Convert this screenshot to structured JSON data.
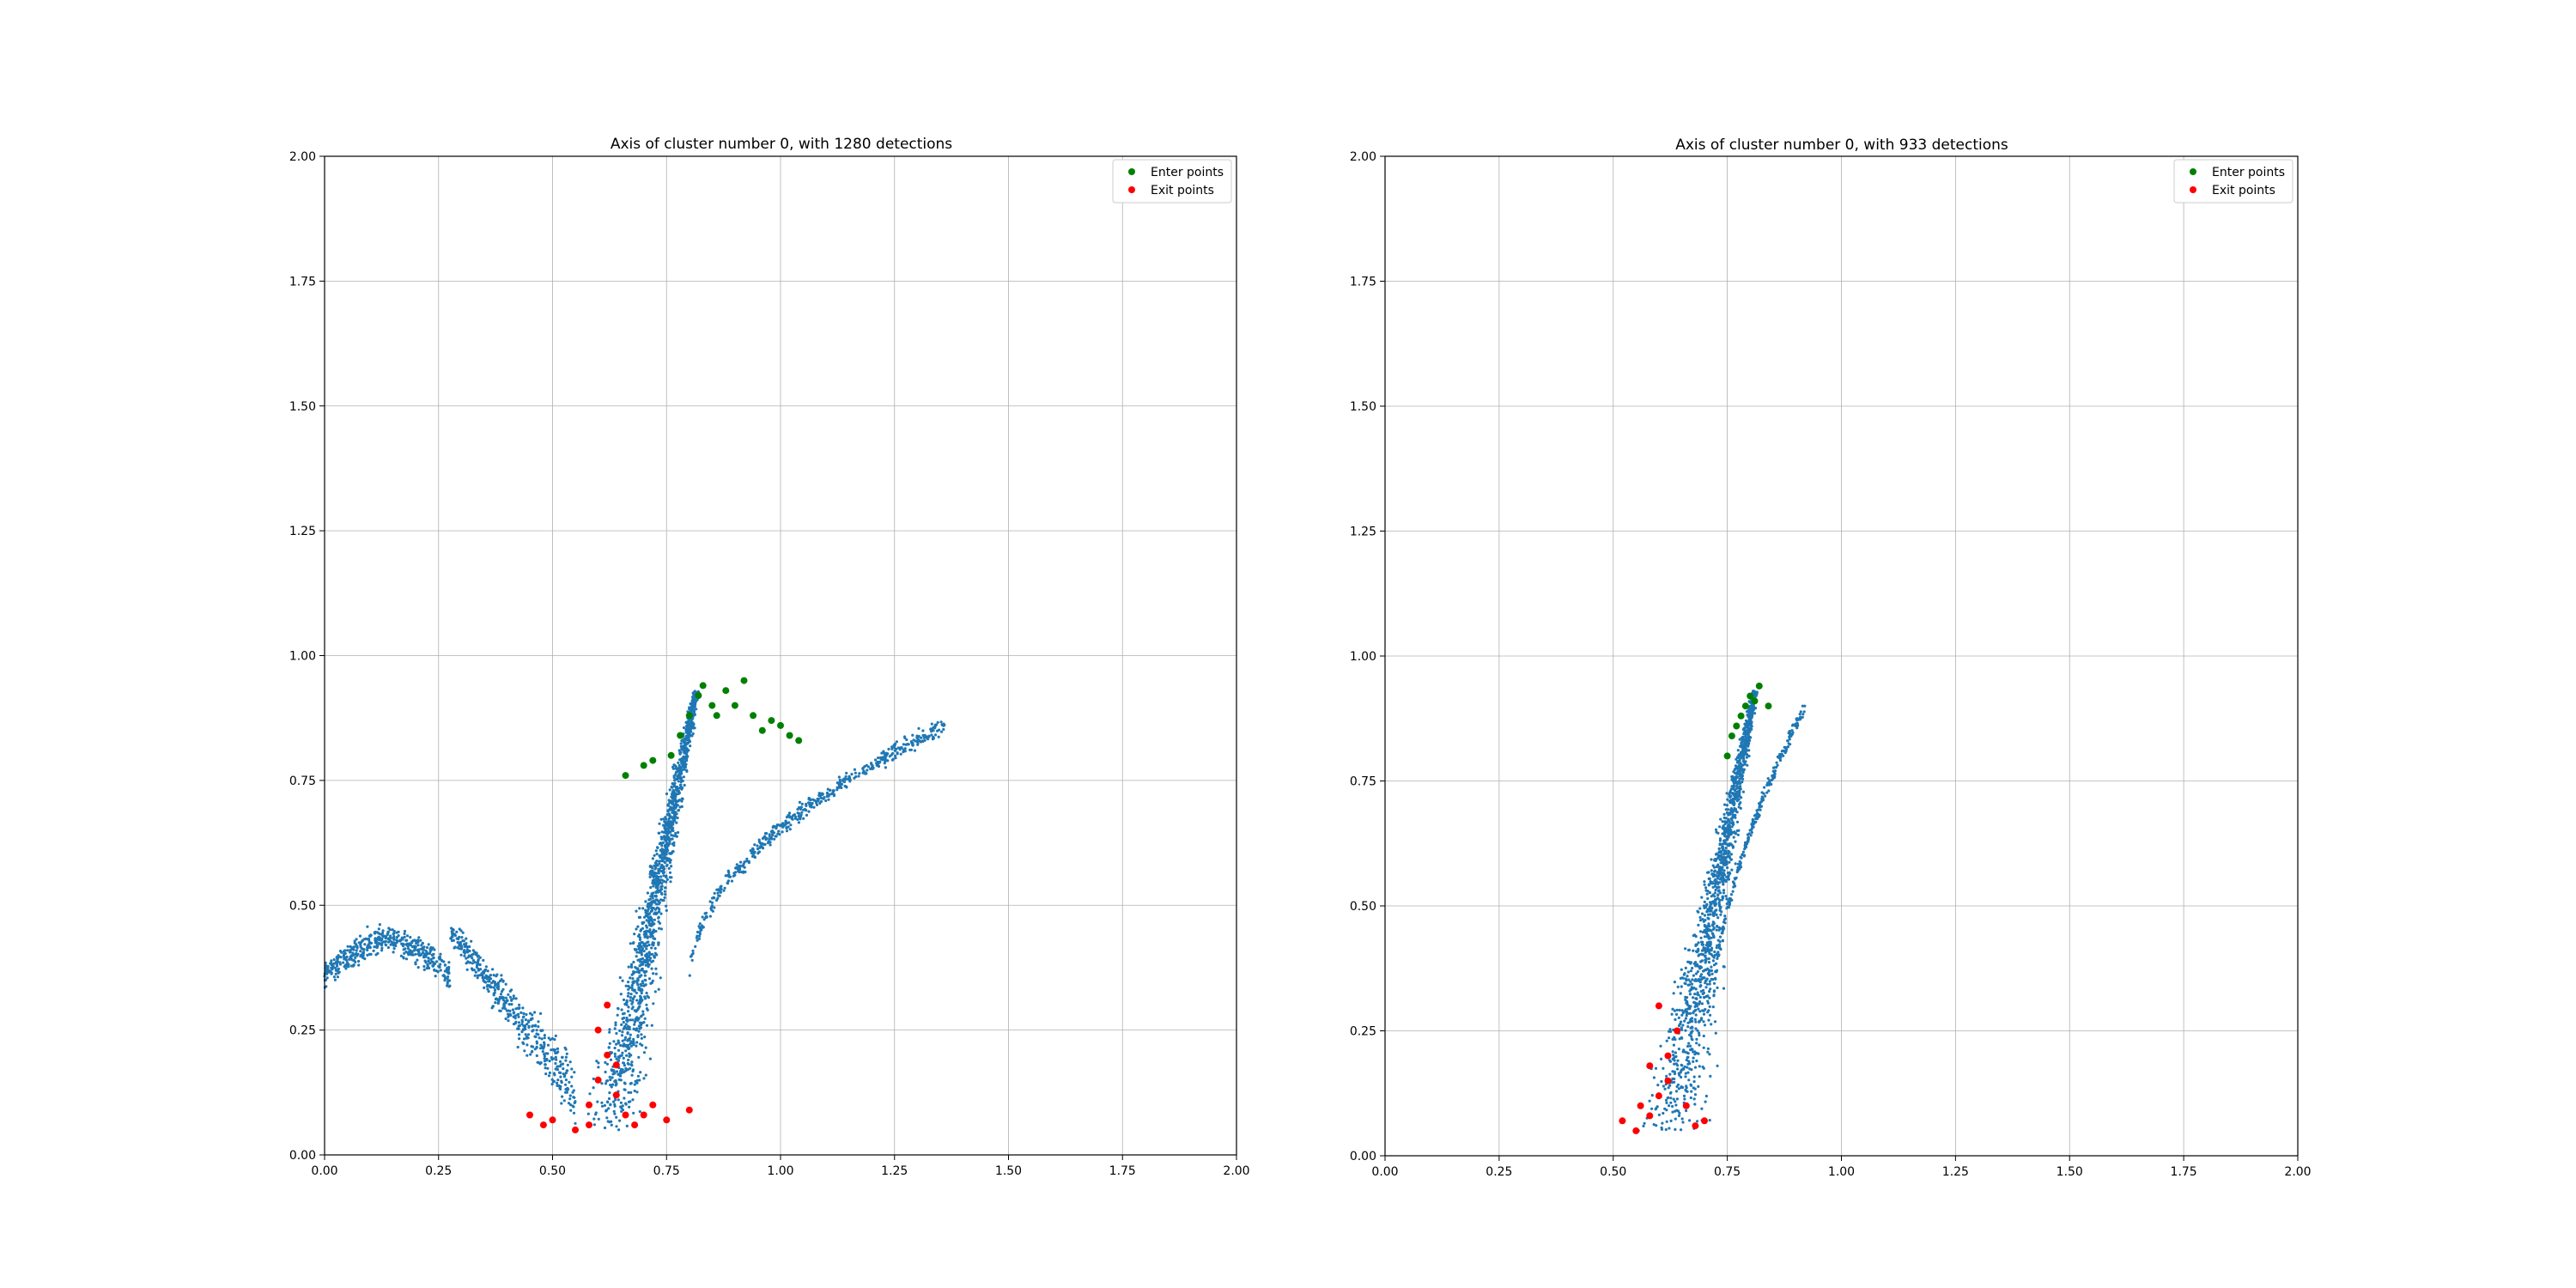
{
  "chart_data": [
    {
      "type": "scatter",
      "title": "Axis of cluster number 0, with 1280 detections",
      "xlabel": "",
      "ylabel": "",
      "xlim": [
        0,
        2
      ],
      "ylim": [
        0,
        2
      ],
      "x_ticks": [
        "0.00",
        "0.25",
        "0.50",
        "0.75",
        "1.00",
        "1.25",
        "1.50",
        "1.75",
        "2.00"
      ],
      "y_ticks": [
        "0.00",
        "0.25",
        "0.50",
        "0.75",
        "1.00",
        "1.25",
        "1.50",
        "1.75",
        "2.00"
      ],
      "grid": true,
      "legend": {
        "placement": "top-right",
        "entries": [
          "Enter points",
          "Exit points"
        ]
      },
      "colors": {
        "trajectory": "#1f77b4",
        "enter": "#008000",
        "exit": "#ff0000"
      },
      "trajectory_regions": [
        {
          "kind": "arch",
          "x": [
            0.0,
            0.55
          ],
          "y_peak": 0.45,
          "y_bottom": 0.07
        },
        {
          "kind": "band",
          "x_bottom": [
            0.55,
            0.7
          ],
          "x_top": [
            0.78,
            0.85
          ],
          "y": [
            0.05,
            0.93
          ]
        },
        {
          "kind": "curve",
          "x": [
            0.8,
            1.36
          ],
          "y": [
            0.35,
            0.86
          ]
        }
      ],
      "series": [
        {
          "name": "Enter points",
          "x": [
            0.8,
            0.82,
            0.83,
            0.85,
            0.78,
            0.76,
            0.86,
            0.88,
            0.9,
            0.92,
            0.94,
            0.96,
            0.98,
            1.0,
            1.02,
            1.04,
            0.66,
            0.7,
            0.72
          ],
          "y": [
            0.88,
            0.92,
            0.94,
            0.9,
            0.84,
            0.8,
            0.88,
            0.93,
            0.9,
            0.95,
            0.88,
            0.85,
            0.87,
            0.86,
            0.84,
            0.83,
            0.76,
            0.78,
            0.79
          ]
        },
        {
          "name": "Exit points",
          "x": [
            0.45,
            0.48,
            0.5,
            0.55,
            0.58,
            0.6,
            0.62,
            0.64,
            0.66,
            0.68,
            0.6,
            0.62,
            0.64,
            0.58,
            0.7,
            0.72,
            0.75,
            0.8
          ],
          "y": [
            0.08,
            0.06,
            0.07,
            0.05,
            0.1,
            0.15,
            0.2,
            0.12,
            0.08,
            0.06,
            0.25,
            0.3,
            0.18,
            0.06,
            0.08,
            0.1,
            0.07,
            0.09
          ]
        }
      ]
    },
    {
      "type": "scatter",
      "title": "Axis of cluster number 0, with 933 detections",
      "xlabel": "",
      "ylabel": "",
      "xlim": [
        0,
        2
      ],
      "ylim": [
        0,
        2
      ],
      "x_ticks": [
        "0.00",
        "0.25",
        "0.50",
        "0.75",
        "1.00",
        "1.25",
        "1.50",
        "1.75",
        "2.00"
      ],
      "y_ticks": [
        "0.00",
        "0.25",
        "0.50",
        "0.75",
        "1.00",
        "1.25",
        "1.50",
        "1.75",
        "2.00"
      ],
      "grid": true,
      "legend": {
        "placement": "top-right",
        "entries": [
          "Enter points",
          "Exit points"
        ]
      },
      "colors": {
        "trajectory": "#1f77b4",
        "enter": "#008000",
        "exit": "#ff0000"
      },
      "trajectory_regions": [
        {
          "kind": "band",
          "x_bottom": [
            0.53,
            0.72
          ],
          "x_top": [
            0.78,
            0.84
          ],
          "y": [
            0.05,
            0.93
          ]
        },
        {
          "kind": "loop",
          "x": [
            0.72,
            0.92
          ],
          "y": [
            0.3,
            0.9
          ]
        }
      ],
      "series": [
        {
          "name": "Enter points",
          "x": [
            0.76,
            0.78,
            0.8,
            0.82,
            0.79,
            0.81,
            0.77,
            0.75,
            0.84
          ],
          "y": [
            0.84,
            0.88,
            0.92,
            0.94,
            0.9,
            0.91,
            0.86,
            0.8,
            0.9
          ]
        },
        {
          "name": "Exit points",
          "x": [
            0.52,
            0.55,
            0.58,
            0.6,
            0.62,
            0.64,
            0.66,
            0.68,
            0.7,
            0.6,
            0.62,
            0.58,
            0.56
          ],
          "y": [
            0.07,
            0.05,
            0.08,
            0.12,
            0.2,
            0.25,
            0.1,
            0.06,
            0.07,
            0.3,
            0.15,
            0.18,
            0.1
          ]
        }
      ]
    }
  ]
}
